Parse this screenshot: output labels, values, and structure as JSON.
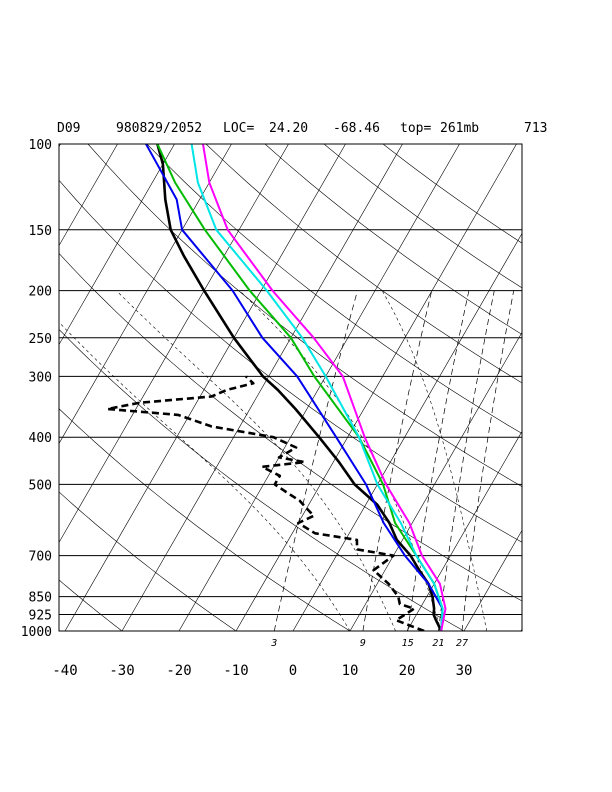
{
  "header": {
    "station": "D09",
    "datetime": "980829/2052",
    "loc_label": "LOC=",
    "lat": "24.20",
    "lon": "-68.46",
    "top_label": "top=",
    "top_value": "261mb",
    "number": "713"
  },
  "chart_data": {
    "type": "line",
    "subtype": "skew-T log-P diagram",
    "pressure_ticks": [
      "100",
      "150",
      "200",
      "250",
      "300",
      "400",
      "500",
      "700",
      "850",
      "925",
      "1000"
    ],
    "temperature_ticks": [
      "-40",
      "-30",
      "-20",
      "-10",
      "0",
      "10",
      "20",
      "30"
    ],
    "mixing_ratio_labels": [
      "3",
      "9",
      "15",
      "21",
      "27"
    ],
    "ylim": [
      1000,
      100
    ],
    "xlim": [
      -40,
      40
    ],
    "pressure_scale": "log",
    "grid": true,
    "colors": {
      "temperature": "#000000",
      "dewpoint": "#000000",
      "blue": "#0000ee",
      "green": "#00bb00",
      "cyan": "#00e5e5",
      "magenta": "#ff00ff"
    },
    "series": [
      {
        "line": "solid",
        "color": "#000000",
        "points": [
          [
            1000,
            26
          ],
          [
            975,
            25
          ],
          [
            950,
            24
          ],
          [
            925,
            23
          ],
          [
            900,
            22.5
          ],
          [
            850,
            21
          ],
          [
            800,
            19
          ],
          [
            750,
            16
          ],
          [
            700,
            13
          ],
          [
            650,
            9
          ],
          [
            600,
            6
          ],
          [
            550,
            2
          ],
          [
            500,
            -4
          ],
          [
            450,
            -9
          ],
          [
            400,
            -15
          ],
          [
            350,
            -22
          ],
          [
            320,
            -27
          ],
          [
            300,
            -31
          ],
          [
            250,
            -40
          ],
          [
            200,
            -50
          ],
          [
            170,
            -57
          ],
          [
            150,
            -62
          ],
          [
            130,
            -66
          ],
          [
            110,
            -70
          ],
          [
            100,
            -73
          ]
        ]
      },
      {
        "line": "dashed",
        "color": "#000000",
        "points": [
          [
            1000,
            23
          ],
          [
            975,
            20
          ],
          [
            950,
            17
          ],
          [
            925,
            18
          ],
          [
            900,
            19
          ],
          [
            880,
            16
          ],
          [
            850,
            15
          ],
          [
            800,
            12
          ],
          [
            750,
            8
          ],
          [
            700,
            10
          ],
          [
            680,
            3
          ],
          [
            650,
            2
          ],
          [
            630,
            -6
          ],
          [
            600,
            -10
          ],
          [
            580,
            -8
          ],
          [
            560,
            -10
          ],
          [
            540,
            -12
          ],
          [
            520,
            -15
          ],
          [
            500,
            -18
          ],
          [
            480,
            -18
          ],
          [
            460,
            -22
          ],
          [
            450,
            -15
          ],
          [
            440,
            -20
          ],
          [
            420,
            -18
          ],
          [
            400,
            -23
          ],
          [
            380,
            -35
          ],
          [
            360,
            -42
          ],
          [
            350,
            -55
          ],
          [
            340,
            -50
          ],
          [
            330,
            -38
          ],
          [
            320,
            -36
          ],
          [
            310,
            -32
          ],
          [
            300,
            -34
          ]
        ]
      },
      {
        "line": "solid",
        "color": "#0000ee",
        "points": [
          [
            1000,
            26
          ],
          [
            900,
            24
          ],
          [
            800,
            19
          ],
          [
            700,
            12
          ],
          [
            600,
            5
          ],
          [
            500,
            -2
          ],
          [
            400,
            -12
          ],
          [
            300,
            -25
          ],
          [
            250,
            -35
          ],
          [
            200,
            -45
          ],
          [
            150,
            -60
          ],
          [
            130,
            -64
          ],
          [
            110,
            -71
          ],
          [
            100,
            -75
          ]
        ]
      },
      {
        "line": "solid",
        "color": "#00bb00",
        "points": [
          [
            1000,
            26
          ],
          [
            900,
            24
          ],
          [
            800,
            20
          ],
          [
            700,
            14
          ],
          [
            600,
            7
          ],
          [
            500,
            1
          ],
          [
            400,
            -8
          ],
          [
            300,
            -22
          ],
          [
            250,
            -30
          ],
          [
            200,
            -42
          ],
          [
            150,
            -56
          ],
          [
            120,
            -66
          ],
          [
            100,
            -73
          ]
        ]
      },
      {
        "line": "solid",
        "color": "#00e5e5",
        "points": [
          [
            1000,
            26
          ],
          [
            900,
            24
          ],
          [
            800,
            20
          ],
          [
            700,
            14
          ],
          [
            600,
            8
          ],
          [
            500,
            0
          ],
          [
            400,
            -8
          ],
          [
            300,
            -20
          ],
          [
            250,
            -28
          ],
          [
            200,
            -39
          ],
          [
            150,
            -54
          ],
          [
            120,
            -62
          ],
          [
            100,
            -67
          ]
        ]
      },
      {
        "line": "solid",
        "color": "#ff00ff",
        "points": [
          [
            1000,
            26
          ],
          [
            900,
            24.5
          ],
          [
            800,
            21
          ],
          [
            700,
            15
          ],
          [
            600,
            9.5
          ],
          [
            500,
            1.5
          ],
          [
            400,
            -7
          ],
          [
            300,
            -17
          ],
          [
            250,
            -26
          ],
          [
            200,
            -38
          ],
          [
            150,
            -52
          ],
          [
            120,
            -60
          ],
          [
            100,
            -65
          ]
        ]
      }
    ]
  }
}
